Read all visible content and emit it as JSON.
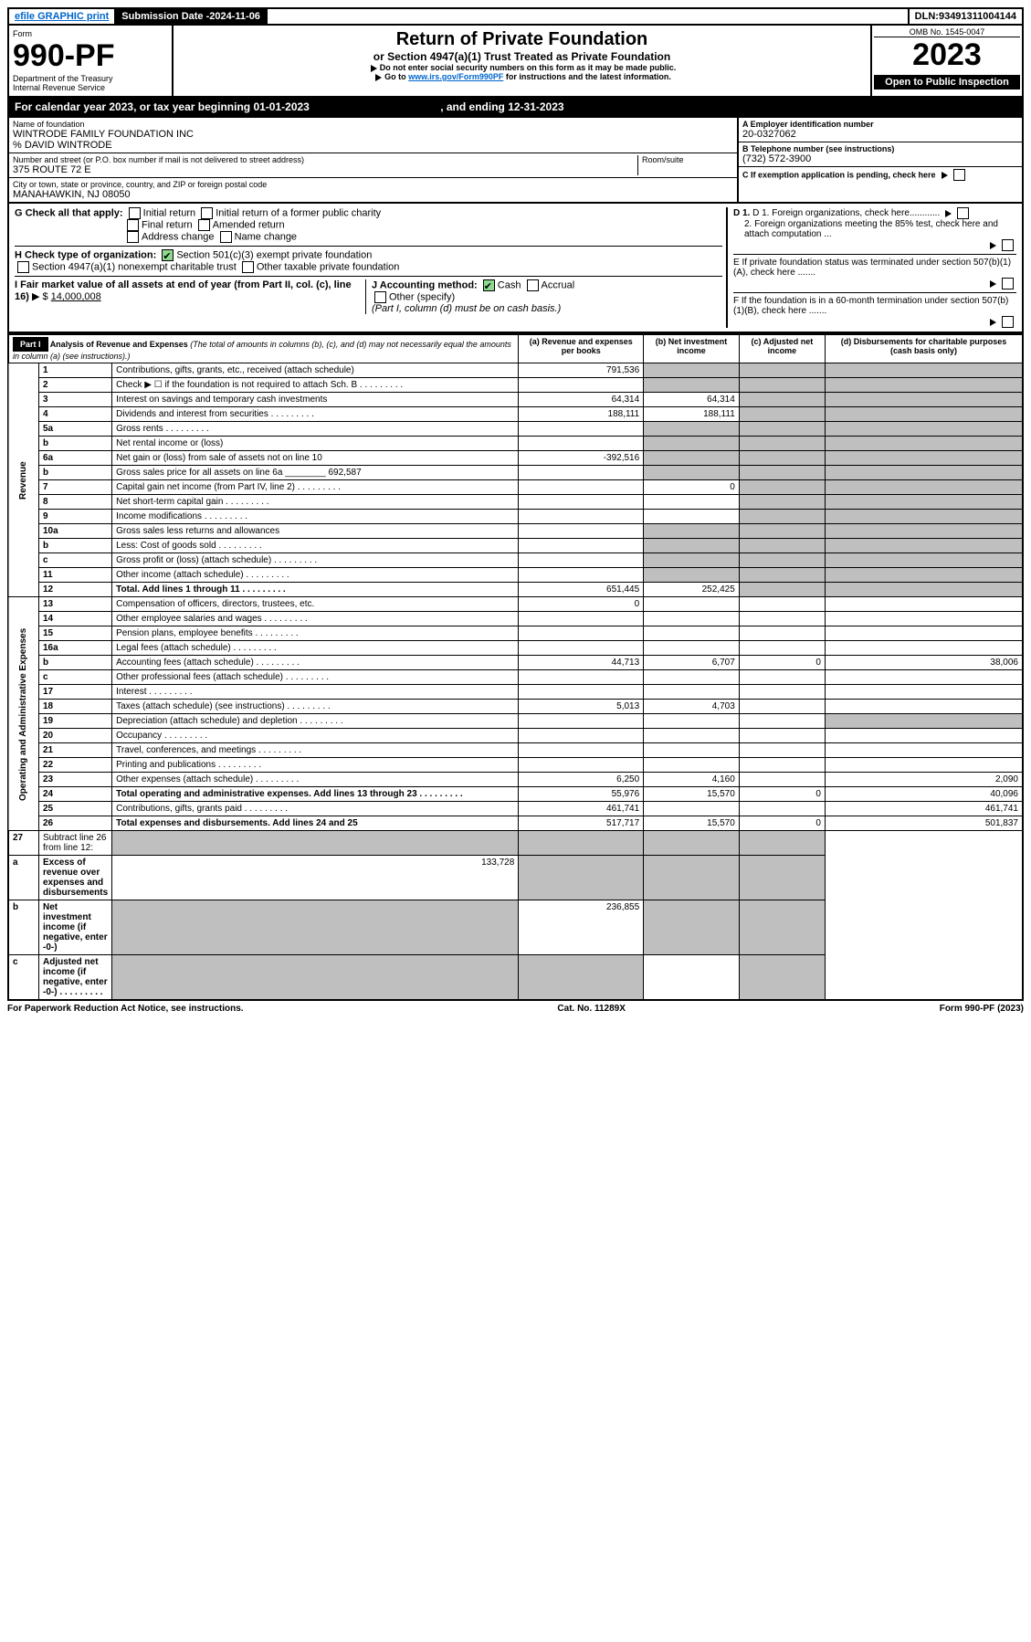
{
  "topbar": {
    "efile": "efile GRAPHIC print",
    "submission_label": "Submission Date - ",
    "submission_date": "2024-11-06",
    "dln_label": "DLN: ",
    "dln": "93491311004144"
  },
  "header": {
    "form_label": "Form",
    "form_number": "990-PF",
    "dept": "Department of the Treasury",
    "irs": "Internal Revenue Service",
    "title": "Return of Private Foundation",
    "subtitle": "or Section 4947(a)(1) Trust Treated as Private Foundation",
    "warn1": "Do not enter social security numbers on this form as it may be made public.",
    "warn2_pre": "Go to ",
    "warn2_link": "www.irs.gov/Form990PF",
    "warn2_post": " for instructions and the latest information.",
    "omb": "OMB No. 1545-0047",
    "year": "2023",
    "open": "Open to Public Inspection"
  },
  "calendar": {
    "pre": "For calendar year 2023, or tax year beginning ",
    "begin": "01-01-2023",
    "mid": ", and ending ",
    "end": "12-31-2023"
  },
  "identity": {
    "name_label": "Name of foundation",
    "name": "WINTRODE FAMILY FOUNDATION INC",
    "care_of": "% DAVID WINTRODE",
    "addr_label": "Number and street (or P.O. box number if mail is not delivered to street address)",
    "room_label": "Room/suite",
    "addr": "375 ROUTE 72 E",
    "city_label": "City or town, state or province, country, and ZIP or foreign postal code",
    "city": "MANAHAWKIN, NJ  08050",
    "a_label": "A Employer identification number",
    "ein": "20-0327062",
    "b_label": "B Telephone number (see instructions)",
    "phone": "(732) 572-3900",
    "c_label": "C If exemption application is pending, check here"
  },
  "checks": {
    "g_label": "G Check all that apply:",
    "g1": "Initial return",
    "g2": "Initial return of a former public charity",
    "g3": "Final return",
    "g4": "Amended return",
    "g5": "Address change",
    "g6": "Name change",
    "h_label": "H Check type of organization:",
    "h1": "Section 501(c)(3) exempt private foundation",
    "h2": "Section 4947(a)(1) nonexempt charitable trust",
    "h3": "Other taxable private foundation",
    "i_label": "I Fair market value of all assets at end of year (from Part II, col. (c), line 16)",
    "i_prefix": "▶ $",
    "i_value": "14,000,008",
    "j_label": "J Accounting method:",
    "j1": "Cash",
    "j2": "Accrual",
    "j3": "Other (specify)",
    "j_note": "(Part I, column (d) must be on cash basis.)",
    "d1": "D 1. Foreign organizations, check here............",
    "d2": "2. Foreign organizations meeting the 85% test, check here and attach computation ...",
    "e": "E  If private foundation status was terminated under section 507(b)(1)(A), check here .......",
    "f": "F  If the foundation is in a 60-month termination under section 507(b)(1)(B), check here ......."
  },
  "part1": {
    "label": "Part I",
    "title": "Analysis of Revenue and Expenses",
    "note": " (The total of amounts in columns (b), (c), and (d) may not necessarily equal the amounts in column (a) (see instructions).)",
    "col_a": "(a)   Revenue and expenses per books",
    "col_b": "(b)   Net investment income",
    "col_c": "(c)   Adjusted net income",
    "col_d": "(d)   Disbursements for charitable purposes (cash basis only)"
  },
  "revenue_label": "Revenue",
  "expenses_label": "Operating and Administrative Expenses",
  "rows": [
    {
      "n": "1",
      "d": "Contributions, gifts, grants, etc., received (attach schedule)",
      "a": "791,536"
    },
    {
      "n": "2",
      "d": "Check ▶ ☐ if the foundation is not required to attach Sch. B",
      "dots": true
    },
    {
      "n": "3",
      "d": "Interest on savings and temporary cash investments",
      "a": "64,314",
      "b": "64,314"
    },
    {
      "n": "4",
      "d": "Dividends and interest from securities",
      "a": "188,111",
      "b": "188,111",
      "dots": true
    },
    {
      "n": "5a",
      "d": "Gross rents",
      "dots": true
    },
    {
      "n": "b",
      "d": "Net rental income or (loss)"
    },
    {
      "n": "6a",
      "d": "Net gain or (loss) from sale of assets not on line 10",
      "a": "-392,516"
    },
    {
      "n": "b",
      "d": "Gross sales price for all assets on line 6a",
      "inline": "692,587"
    },
    {
      "n": "7",
      "d": "Capital gain net income (from Part IV, line 2)",
      "b": "0",
      "dots": true
    },
    {
      "n": "8",
      "d": "Net short-term capital gain",
      "dots": true
    },
    {
      "n": "9",
      "d": "Income modifications",
      "dots": true
    },
    {
      "n": "10a",
      "d": "Gross sales less returns and allowances"
    },
    {
      "n": "b",
      "d": "Less: Cost of goods sold",
      "dots": true
    },
    {
      "n": "c",
      "d": "Gross profit or (loss) (attach schedule)",
      "dots": true
    },
    {
      "n": "11",
      "d": "Other income (attach schedule)",
      "dots": true
    },
    {
      "n": "12",
      "d": "Total. Add lines 1 through 11",
      "bold": true,
      "a": "651,445",
      "b": "252,425",
      "dots": true
    }
  ],
  "exp_rows": [
    {
      "n": "13",
      "d": "Compensation of officers, directors, trustees, etc.",
      "a": "0"
    },
    {
      "n": "14",
      "d": "Other employee salaries and wages",
      "dots": true
    },
    {
      "n": "15",
      "d": "Pension plans, employee benefits",
      "dots": true
    },
    {
      "n": "16a",
      "d": "Legal fees (attach schedule)",
      "dots": true
    },
    {
      "n": "b",
      "d": "Accounting fees (attach schedule)",
      "a": "44,713",
      "b": "6,707",
      "c": "0",
      "dd": "38,006",
      "dots": true
    },
    {
      "n": "c",
      "d": "Other professional fees (attach schedule)",
      "dots": true
    },
    {
      "n": "17",
      "d": "Interest",
      "dots": true
    },
    {
      "n": "18",
      "d": "Taxes (attach schedule) (see instructions)",
      "a": "5,013",
      "b": "4,703",
      "dots": true
    },
    {
      "n": "19",
      "d": "Depreciation (attach schedule) and depletion",
      "dots": true
    },
    {
      "n": "20",
      "d": "Occupancy",
      "dots": true
    },
    {
      "n": "21",
      "d": "Travel, conferences, and meetings",
      "dots": true
    },
    {
      "n": "22",
      "d": "Printing and publications",
      "dots": true
    },
    {
      "n": "23",
      "d": "Other expenses (attach schedule)",
      "a": "6,250",
      "b": "4,160",
      "dd": "2,090",
      "dots": true
    },
    {
      "n": "24",
      "d": "Total operating and administrative expenses. Add lines 13 through 23",
      "bold": true,
      "a": "55,976",
      "b": "15,570",
      "c": "0",
      "dd": "40,096",
      "dots": true
    },
    {
      "n": "25",
      "d": "Contributions, gifts, grants paid",
      "a": "461,741",
      "dd": "461,741",
      "dots": true
    },
    {
      "n": "26",
      "d": "Total expenses and disbursements. Add lines 24 and 25",
      "bold": true,
      "a": "517,717",
      "b": "15,570",
      "c": "0",
      "dd": "501,837"
    }
  ],
  "final_rows": [
    {
      "n": "27",
      "d": "Subtract line 26 from line 12:"
    },
    {
      "n": "a",
      "d": "Excess of revenue over expenses and disbursements",
      "bold": true,
      "a": "133,728"
    },
    {
      "n": "b",
      "d": "Net investment income (if negative, enter -0-)",
      "bold": true,
      "b": "236,855"
    },
    {
      "n": "c",
      "d": "Adjusted net income (if negative, enter -0-)",
      "bold": true,
      "dots": true
    }
  ],
  "footer": {
    "left": "For Paperwork Reduction Act Notice, see instructions.",
    "mid": "Cat. No. 11289X",
    "right": "Form 990-PF (2023)"
  }
}
